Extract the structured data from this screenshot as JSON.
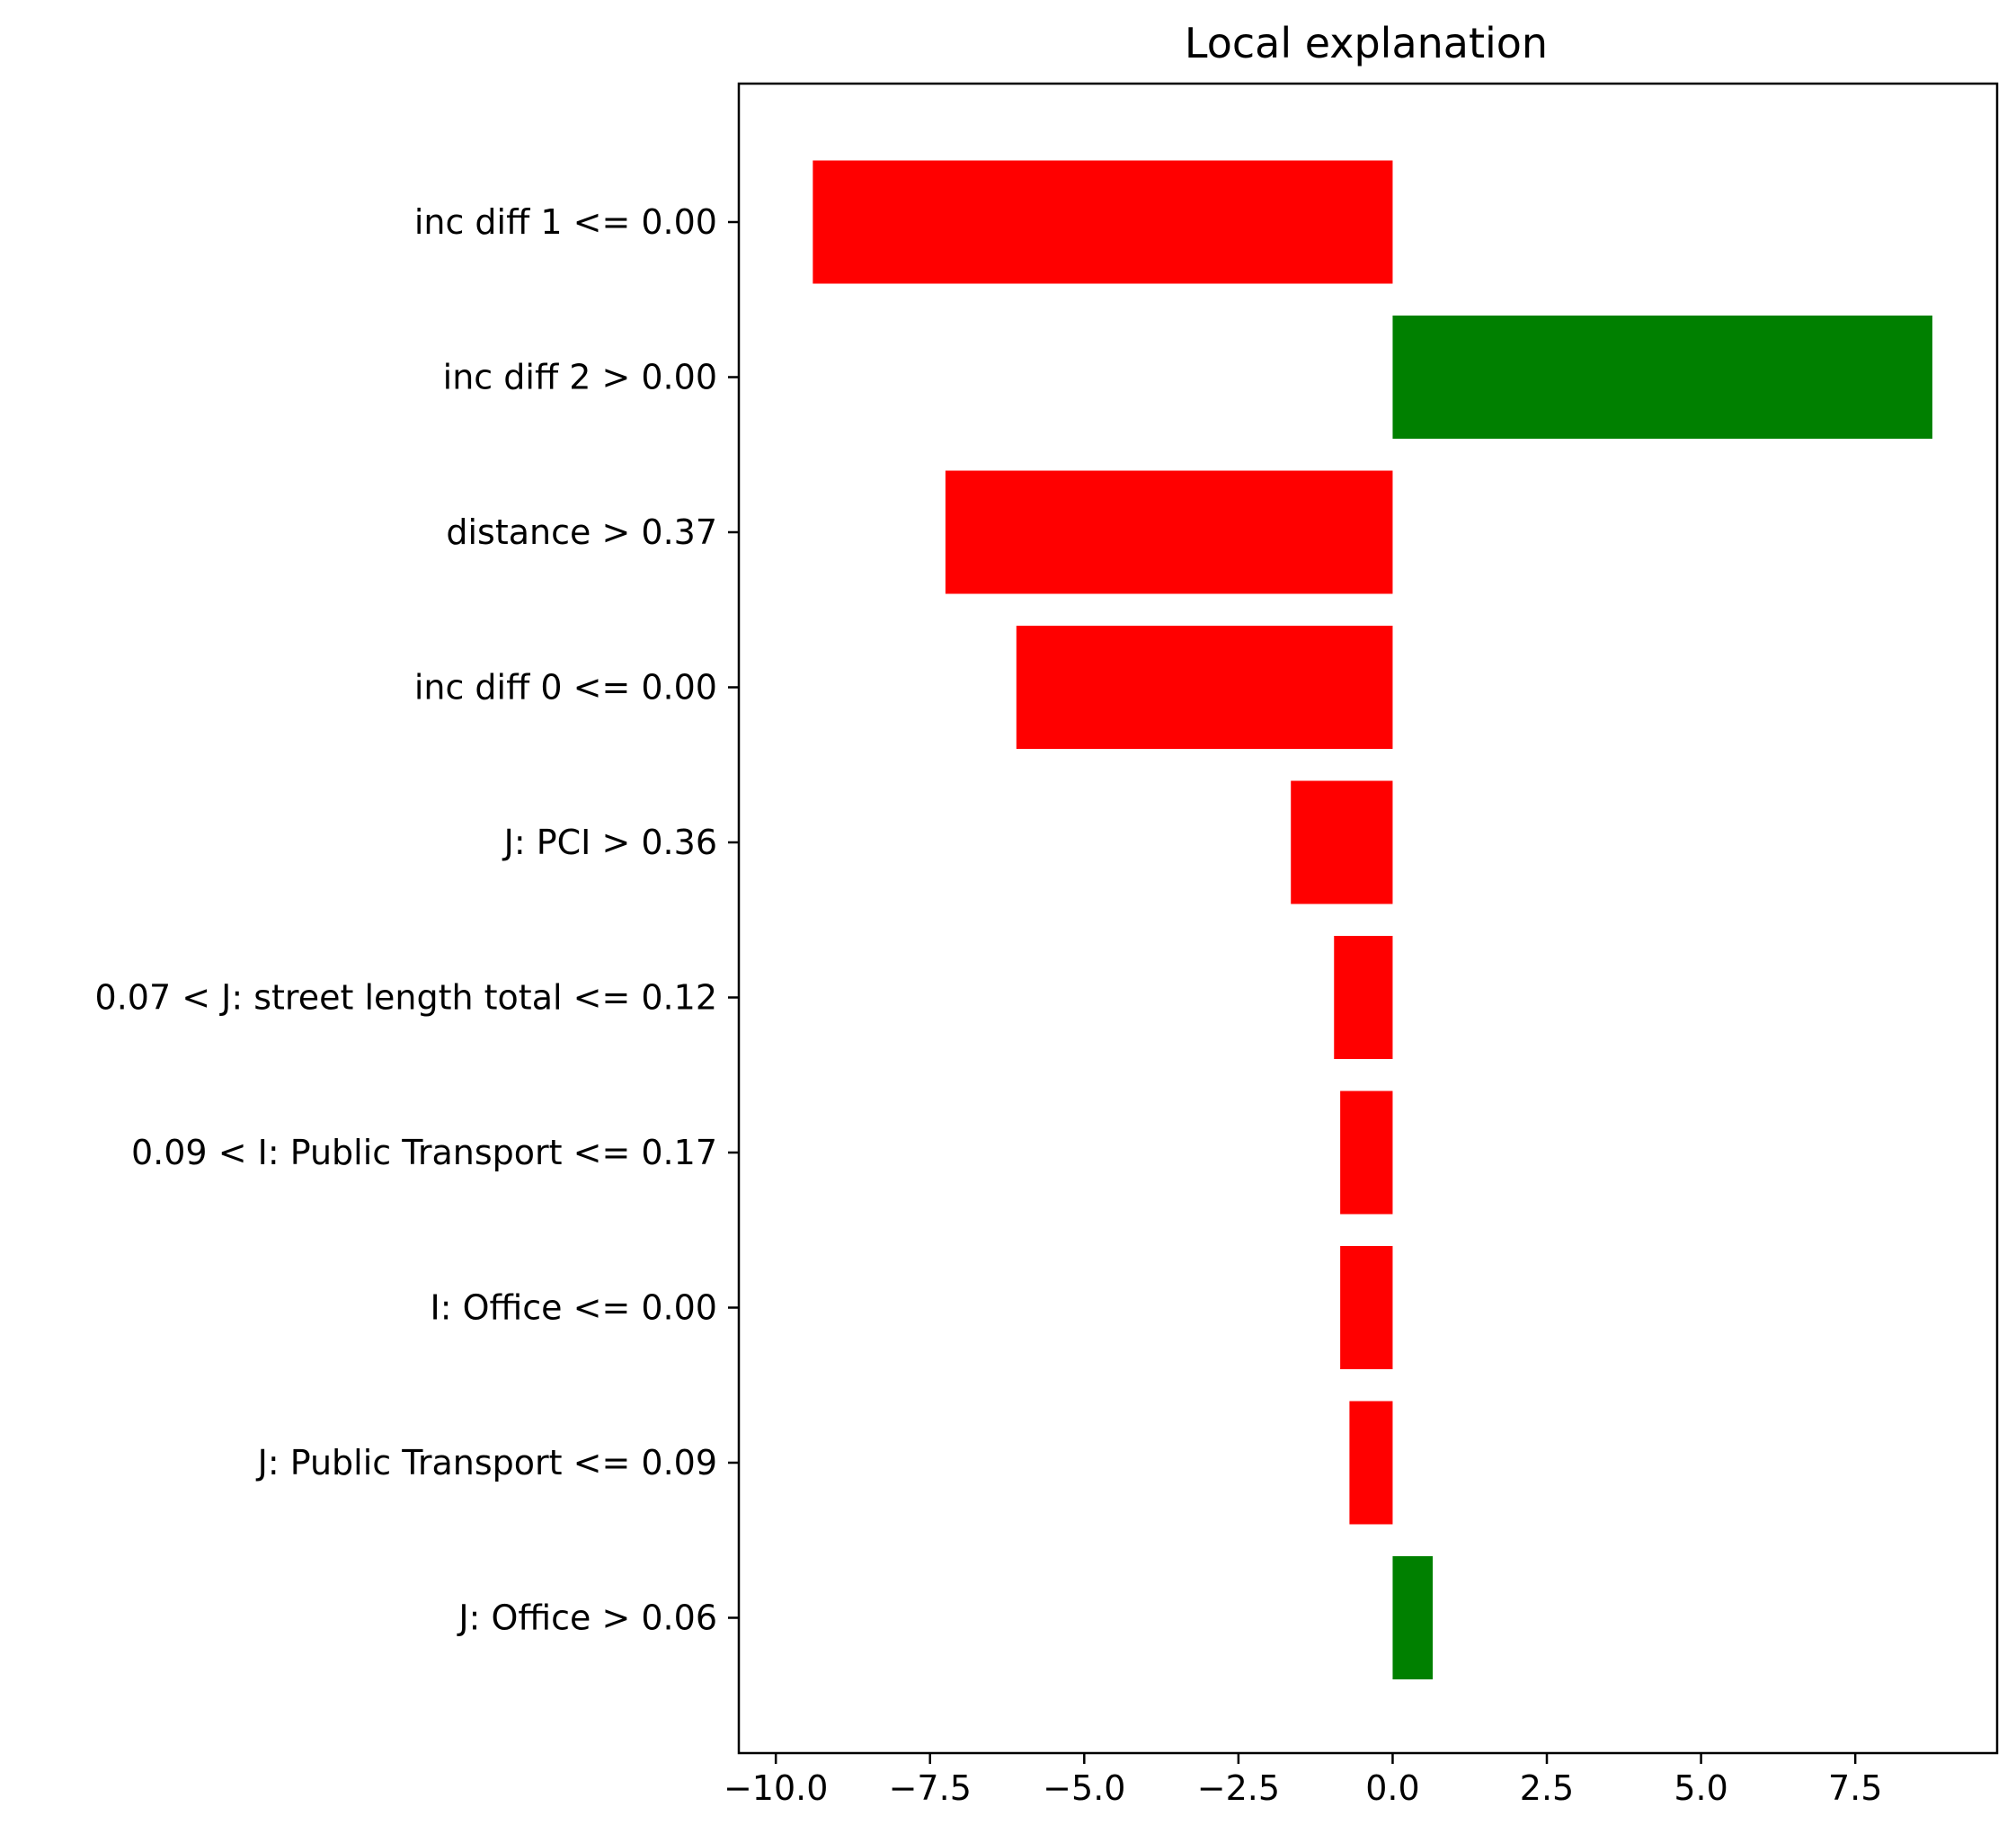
{
  "chart_data": {
    "type": "bar",
    "orientation": "horizontal",
    "title": "Local explanation",
    "xlabel": "",
    "ylabel": "",
    "xlim": [
      -10.6,
      9.8
    ],
    "x_ticks": [
      -10.0,
      -7.5,
      -5.0,
      -2.5,
      0.0,
      2.5,
      5.0,
      7.5
    ],
    "x_tick_labels": [
      "−10.0",
      "−7.5",
      "−5.0",
      "−2.5",
      "0.0",
      "2.5",
      "5.0",
      "7.5"
    ],
    "grid": false,
    "colors": {
      "positive": "#008000",
      "negative": "#ff0000"
    },
    "categories": [
      "inc diff 1 <= 0.00",
      "inc diff 2 > 0.00",
      "distance > 0.37",
      "inc diff 0 <= 0.00",
      "J: PCI > 0.36",
      "0.07 < J: street length total <= 0.12",
      "0.09 < I: Public Transport <= 0.17",
      "I: Office <= 0.00",
      "J: Public Transport <= 0.09",
      "J: Office > 0.06"
    ],
    "values": [
      -9.4,
      8.75,
      -7.25,
      -6.1,
      -1.65,
      -0.95,
      -0.85,
      -0.85,
      -0.7,
      0.65
    ]
  }
}
